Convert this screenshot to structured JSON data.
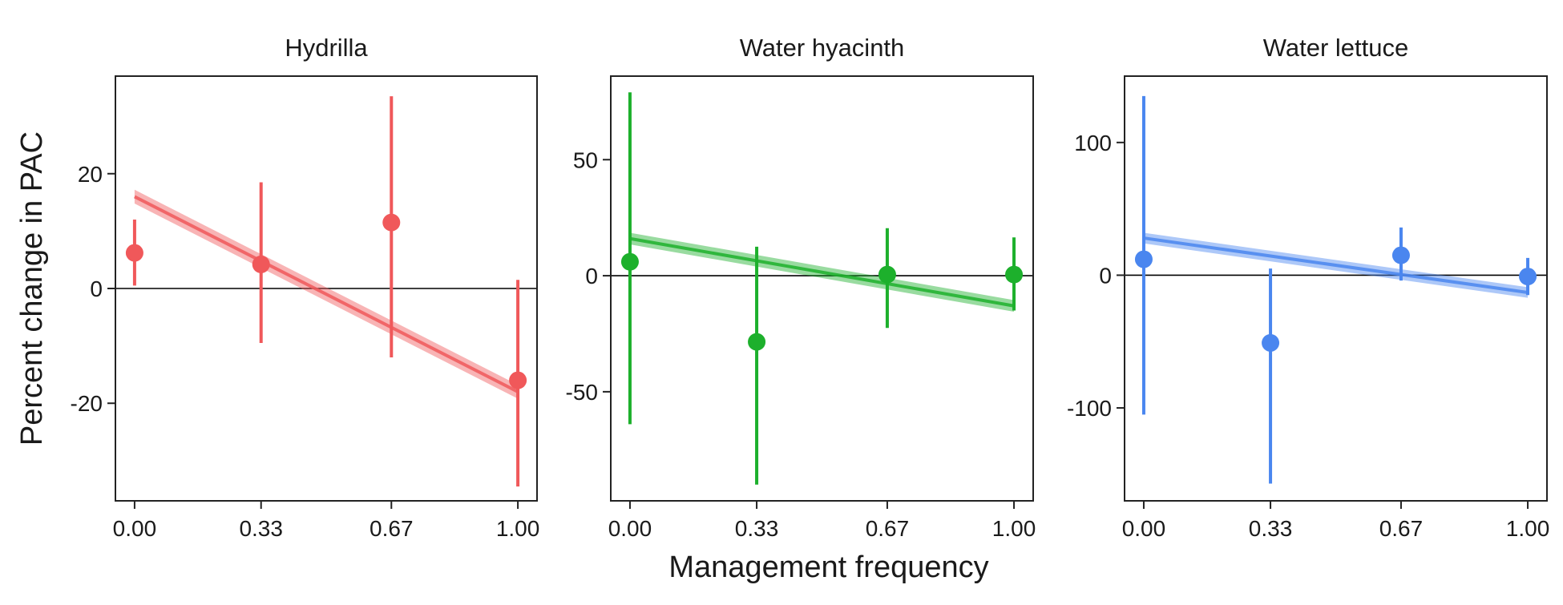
{
  "figure": {
    "ylabel": "Percent change in PAC",
    "xlabel": "Management frequency"
  },
  "chart_data": [
    {
      "type": "scatter",
      "title": "Hydrilla",
      "color": "#f0585a",
      "x_ticks": [
        "0.00",
        "0.33",
        "0.67",
        "1.00"
      ],
      "x_values": [
        0.0,
        0.33,
        0.67,
        1.0
      ],
      "xlim": [
        -0.05,
        1.05
      ],
      "ylim": [
        -37,
        37
      ],
      "y_ticks": [
        -20,
        0,
        20
      ],
      "y_tick_labels": [
        "-20",
        "0",
        "20"
      ],
      "points": [
        {
          "x": 0.0,
          "y": 6.2,
          "lo": 0.5,
          "hi": 12.0
        },
        {
          "x": 0.33,
          "y": 4.2,
          "lo": -9.5,
          "hi": 18.5
        },
        {
          "x": 0.67,
          "y": 11.5,
          "lo": -12.0,
          "hi": 33.5
        },
        {
          "x": 1.0,
          "y": -16.0,
          "lo": -34.5,
          "hi": 1.5
        }
      ],
      "trend": {
        "x0": 0.0,
        "y0": 16.0,
        "x1": 1.0,
        "y1": -18.0,
        "ci": 1.2
      },
      "reference_y": 0
    },
    {
      "type": "scatter",
      "title": "Water hyacinth",
      "color": "#1db02c",
      "x_ticks": [
        "0.00",
        "0.33",
        "0.67",
        "1.00"
      ],
      "x_values": [
        0.0,
        0.33,
        0.67,
        1.0
      ],
      "xlim": [
        -0.05,
        1.05
      ],
      "ylim": [
        -97,
        86
      ],
      "y_ticks": [
        -50,
        0,
        50
      ],
      "y_tick_labels": [
        "-50",
        "0",
        "50"
      ],
      "points": [
        {
          "x": 0.0,
          "y": 6.0,
          "lo": -64.0,
          "hi": 79.0
        },
        {
          "x": 0.33,
          "y": -28.5,
          "lo": -90.0,
          "hi": 12.5
        },
        {
          "x": 0.67,
          "y": 0.5,
          "lo": -22.5,
          "hi": 20.5
        },
        {
          "x": 1.0,
          "y": 0.5,
          "lo": -15.0,
          "hi": 16.5
        }
      ],
      "trend": {
        "x0": 0.0,
        "y0": 16.0,
        "x1": 1.0,
        "y1": -13.0,
        "ci": 2.5
      },
      "reference_y": 0
    },
    {
      "type": "scatter",
      "title": "Water lettuce",
      "color": "#4a86ef",
      "x_ticks": [
        "0.00",
        "0.33",
        "0.67",
        "1.00"
      ],
      "x_values": [
        0.0,
        0.33,
        0.67,
        1.0
      ],
      "xlim": [
        -0.05,
        1.05
      ],
      "ylim": [
        -170,
        150
      ],
      "y_ticks": [
        -100,
        0,
        100
      ],
      "y_tick_labels": [
        "-100",
        "0",
        "100"
      ],
      "points": [
        {
          "x": 0.0,
          "y": 12.0,
          "lo": -105.0,
          "hi": 135.0
        },
        {
          "x": 0.33,
          "y": -51.0,
          "lo": -157.0,
          "hi": 5.0
        },
        {
          "x": 0.67,
          "y": 15.0,
          "lo": -4.0,
          "hi": 36.0
        },
        {
          "x": 1.0,
          "y": -1.0,
          "lo": -15.0,
          "hi": 13.0
        }
      ],
      "trend": {
        "x0": 0.0,
        "y0": 28.0,
        "x1": 1.0,
        "y1": -13.0,
        "ci": 4.0
      },
      "reference_y": 0
    }
  ]
}
